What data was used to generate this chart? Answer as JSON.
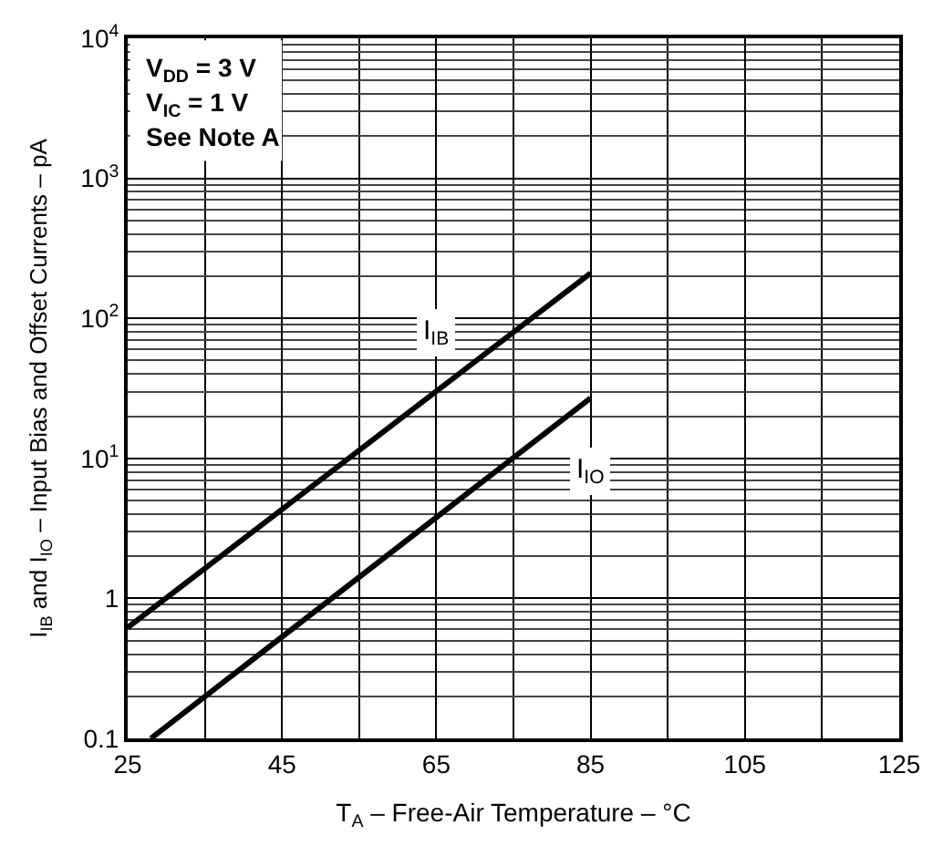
{
  "chart_data": {
    "type": "line",
    "xlabel": "T$_{A}$ – Free-Air Temperature – °C",
    "ylabel": "I$_{IB}$ and I$_{IO}$ – Input Bias and Offset Currents – pA",
    "log": "y",
    "grid": true,
    "legend": false,
    "marker": "none",
    "line_style": "solid",
    "xlim": [
      25,
      125
    ],
    "xticks": [
      25,
      45,
      65,
      85,
      105,
      125
    ],
    "ylim": [
      0.1,
      10000
    ],
    "yticks": [
      0.1,
      1,
      {
        "value": 10,
        "label": "10$^{1}$"
      },
      {
        "value": 100,
        "label": "10$^{2}$"
      },
      {
        "value": 1000,
        "label": "10$^{3}$"
      },
      {
        "value": 10000,
        "label": "10$^{4}$"
      }
    ],
    "series": [
      {
        "color": "#000000",
        "x": [
          25,
          85
        ],
        "values": [
          0.62,
          210
        ]
      },
      {
        "color": "#000000",
        "x": [
          28,
          85
        ],
        "values": [
          0.1,
          27
        ]
      }
    ],
    "annotations": [
      "V$_{DD}$ = 3 V",
      "V$_{IC}$ = 1 V",
      "See Note A",
      {
        "text": "I$_{IB}$",
        "x": 65,
        "y": 80
      },
      {
        "text": "I$_{IO}$",
        "x": 85,
        "y": 8
      }
    ]
  }
}
